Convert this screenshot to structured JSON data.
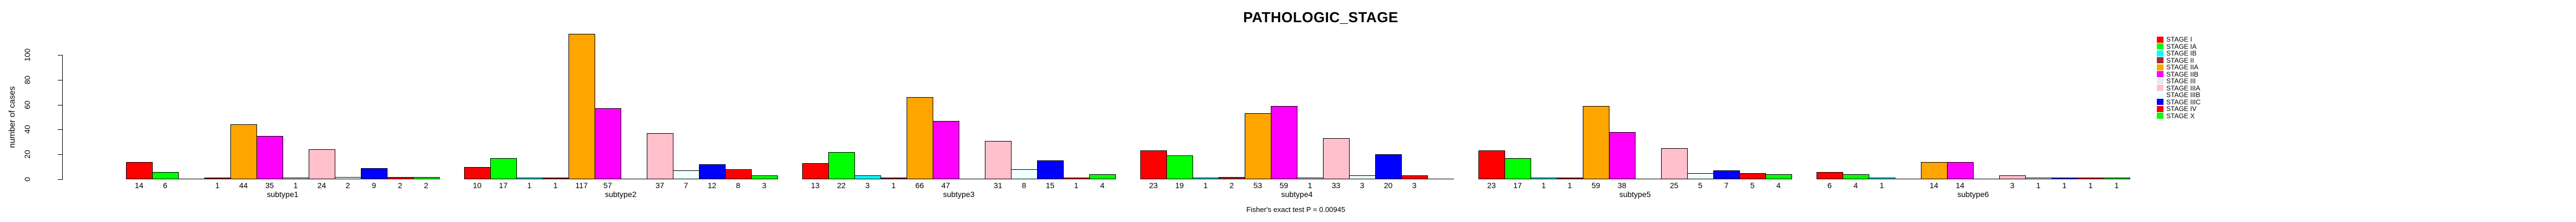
{
  "chart_data": {
    "type": "bar",
    "title": "PATHOLOGIC_STAGE",
    "ylabel": "number of cases",
    "yticks": [
      0,
      20,
      40,
      60,
      80,
      100
    ],
    "ylim": [
      0,
      117
    ],
    "grid": false,
    "legend_position": "top-right",
    "footer": "Fisher's exact test P = 0.00945",
    "stages": [
      "STAGE I",
      "STAGE IA",
      "STAGE IB",
      "STAGE II",
      "STAGE IIA",
      "STAGE IIB",
      "STAGE III",
      "STAGE IIIA",
      "STAGE IIIB",
      "STAGE IIIC",
      "STAGE IV",
      "STAGE X"
    ],
    "stage_colors": [
      "#FF0000",
      "#00FF00",
      "#00FFFF",
      "#A52A2A",
      "#FFA500",
      "#FF00FF",
      "#E6E6FA",
      "#FFC0CB",
      "#F0FFFF",
      "#0000FF",
      "#FF0000",
      "#00FF00"
    ],
    "categories": [
      "subtype1",
      "subtype2",
      "subtype3",
      "subtype4",
      "subtype5",
      "subtype6"
    ],
    "panels": [
      {
        "label": "subtype1",
        "values": [
          14,
          6,
          0,
          1,
          44,
          35,
          1,
          24,
          2,
          9,
          2,
          2
        ]
      },
      {
        "label": "subtype2",
        "values": [
          10,
          17,
          1,
          1,
          117,
          57,
          0,
          37,
          7,
          12,
          8,
          3
        ]
      },
      {
        "label": "subtype3",
        "values": [
          13,
          22,
          3,
          1,
          66,
          47,
          0,
          31,
          8,
          15,
          1,
          4
        ]
      },
      {
        "label": "subtype4",
        "values": [
          23,
          19,
          1,
          2,
          53,
          59,
          1,
          33,
          3,
          20,
          3,
          0
        ]
      },
      {
        "label": "subtype5",
        "values": [
          23,
          17,
          1,
          1,
          59,
          38,
          0,
          25,
          5,
          7,
          5,
          4
        ]
      },
      {
        "label": "subtype6",
        "values": [
          6,
          4,
          1,
          0,
          14,
          14,
          0,
          3,
          1,
          1,
          1,
          1
        ]
      }
    ]
  }
}
